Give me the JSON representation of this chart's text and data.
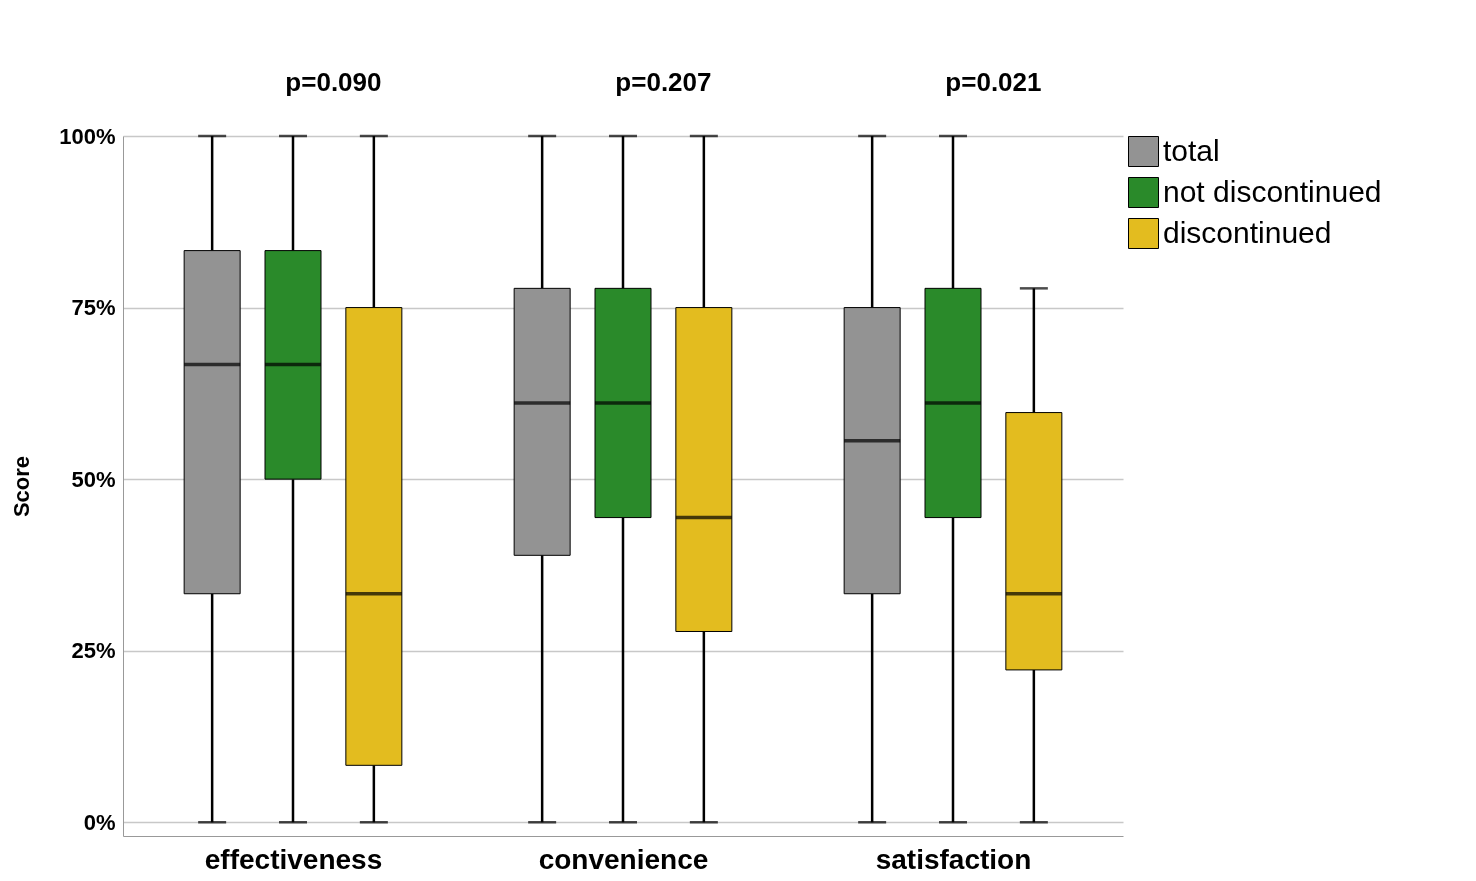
{
  "chart_data": {
    "type": "box",
    "ylabel": "Score",
    "categories": [
      "effectiveness",
      "convenience",
      "satisfaction"
    ],
    "series": [
      {
        "name": "total",
        "color": "#939393",
        "boxes": [
          {
            "low": 0,
            "q1": 33.3,
            "median": 66.7,
            "q3": 83.3,
            "high": 100
          },
          {
            "low": 0,
            "q1": 38.9,
            "median": 61.1,
            "q3": 77.8,
            "high": 100
          },
          {
            "low": 0,
            "q1": 33.3,
            "median": 55.6,
            "q3": 75,
            "high": 100
          }
        ]
      },
      {
        "name": "not discontinued",
        "color": "#2a8a2a",
        "boxes": [
          {
            "low": 0,
            "q1": 50,
            "median": 66.7,
            "q3": 83.3,
            "high": 100
          },
          {
            "low": 0,
            "q1": 44.4,
            "median": 61.1,
            "q3": 77.8,
            "high": 100
          },
          {
            "low": 0,
            "q1": 44.4,
            "median": 61.1,
            "q3": 77.8,
            "high": 100
          }
        ]
      },
      {
        "name": "discontinued",
        "color": "#e3bc1f",
        "boxes": [
          {
            "low": 0,
            "q1": 8.3,
            "median": 33.3,
            "q3": 75,
            "high": 100
          },
          {
            "low": 0,
            "q1": 27.8,
            "median": 44.4,
            "q3": 75,
            "high": 100
          },
          {
            "low": 0,
            "q1": 22.2,
            "median": 33.3,
            "q3": 59.7,
            "high": 77.8
          }
        ]
      }
    ],
    "annotations": [
      "p=0.090",
      "p=0.207",
      "p=0.021"
    ],
    "ylim": [
      -2,
      100
    ],
    "yticks": [
      {
        "value": 0,
        "label": "0%"
      },
      {
        "value": 25,
        "label": "25%"
      },
      {
        "value": 50,
        "label": "50%"
      },
      {
        "value": 75,
        "label": "75%"
      },
      {
        "value": 100,
        "label": "100%"
      }
    ],
    "grid": "y",
    "legend": "top right"
  }
}
